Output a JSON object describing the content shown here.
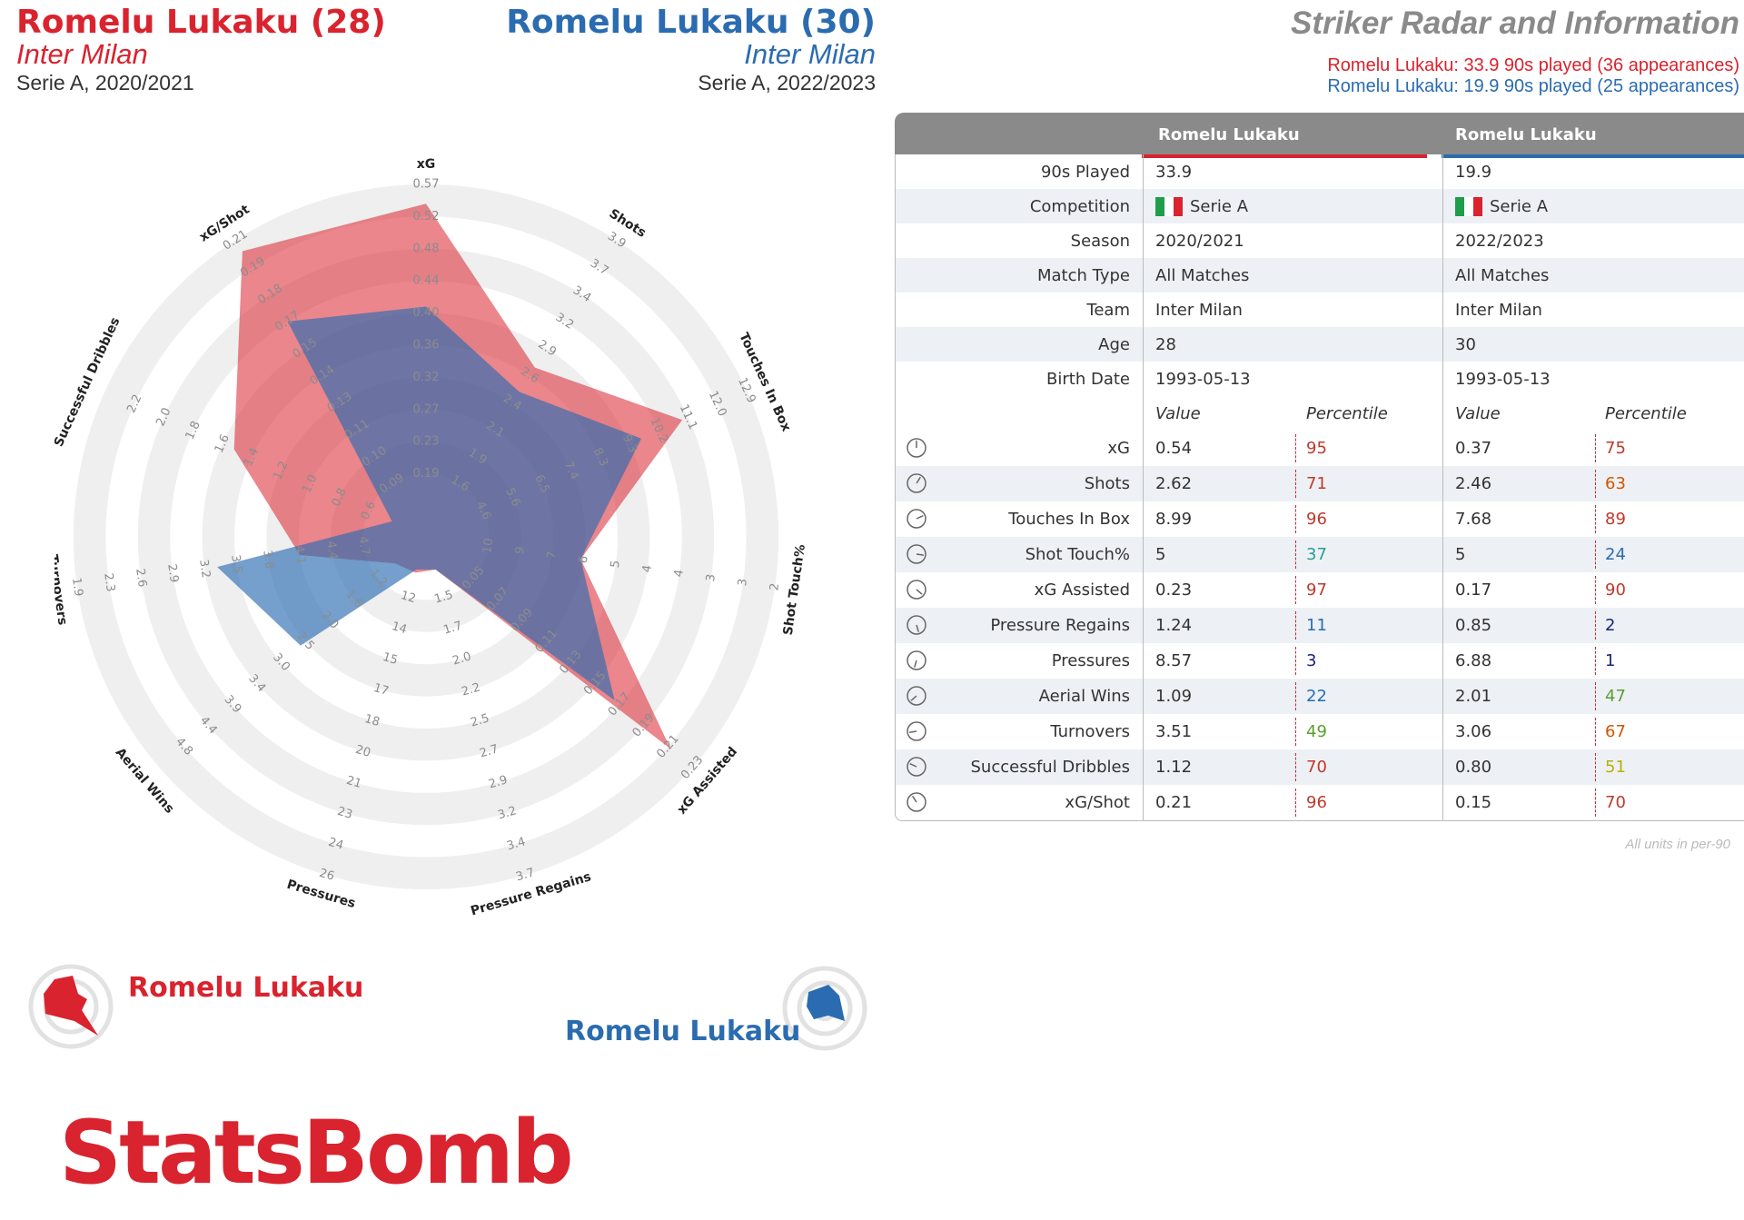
{
  "player1": {
    "name": "Romelu Lukaku (28)",
    "team": "Inter Milan",
    "competition_season": "Serie A, 2020/2021",
    "color": "#d9232e"
  },
  "player2": {
    "name": "Romelu Lukaku (30)",
    "team": "Inter Milan",
    "competition_season": "Serie A, 2022/2023",
    "color": "#2b6cb0"
  },
  "title": "Striker Radar and Information",
  "info_lines": [
    {
      "label": "Romelu Lukaku:",
      "text": "33.9 90s played (36 appearances)"
    },
    {
      "label": "Romelu Lukaku:",
      "text": "19.9 90s played (25 appearances)"
    }
  ],
  "chart_data": {
    "type": "radar",
    "metrics": [
      {
        "name": "xG",
        "ticks": [
          "0.19",
          "0.23",
          "0.27",
          "0.32",
          "0.36",
          "0.40",
          "0.44",
          "0.48",
          "0.52",
          "0.57"
        ]
      },
      {
        "name": "Shots",
        "ticks": [
          "1.6",
          "1.9",
          "2.1",
          "2.4",
          "2.6",
          "2.9",
          "3.2",
          "3.4",
          "3.7",
          "3.9"
        ]
      },
      {
        "name": "Touches In Box",
        "ticks": [
          "4.6",
          "5.6",
          "6.5",
          "7.4",
          "8.3",
          "9.3",
          "10.2",
          "11.1",
          "12.0",
          "12.9"
        ]
      },
      {
        "name": "Shot Touch%",
        "ticks": [
          "10",
          "9",
          "7",
          "6",
          "5",
          "4",
          "4",
          "3",
          "3",
          "2"
        ]
      },
      {
        "name": "xG Assisted",
        "ticks": [
          "0.05",
          "0.07",
          "0.09",
          "0.11",
          "0.13",
          "0.15",
          "0.17",
          "0.19",
          "0.21",
          "0.23"
        ]
      },
      {
        "name": "Pressure Regains",
        "ticks": [
          "1.5",
          "1.7",
          "2.0",
          "2.2",
          "2.5",
          "2.7",
          "2.9",
          "3.2",
          "3.4",
          "3.7"
        ]
      },
      {
        "name": "Pressures",
        "ticks": [
          "12",
          "14",
          "15",
          "17",
          "18",
          "20",
          "21",
          "23",
          "24",
          "26"
        ]
      },
      {
        "name": "Aerial Wins",
        "ticks": [
          "1.2",
          "1.6",
          "2.0",
          "2.5",
          "3.0",
          "3.4",
          "3.9",
          "4.4",
          "4.8"
        ]
      },
      {
        "name": "Turnovers",
        "ticks": [
          "4.7",
          "4.4",
          "4.1",
          "3.8",
          "3.5",
          "3.2",
          "2.9",
          "2.6",
          "2.3",
          "1.9"
        ]
      },
      {
        "name": "Successful Dribbles",
        "ticks": [
          "0.6",
          "0.8",
          "1.0",
          "1.2",
          "1.4",
          "1.6",
          "1.8",
          "2.0",
          "2.2"
        ]
      },
      {
        "name": "xG/Shot",
        "ticks": [
          "0.09",
          "0.10",
          "0.11",
          "0.13",
          "0.14",
          "0.15",
          "0.17",
          "0.18",
          "0.19",
          "0.21"
        ]
      }
    ],
    "series": [
      {
        "name": "Romelu Lukaku",
        "color": "#d9232e",
        "fraction": [
          0.94,
          0.53,
          0.78,
          0.39,
          0.91,
          0.01,
          0.02,
          0.03,
          0.3,
          0.56,
          0.96
        ]
      },
      {
        "name": "Romelu Lukaku",
        "color": "#2b6cb0",
        "fraction": [
          0.62,
          0.44,
          0.64,
          0.39,
          0.68,
          0.01,
          0.01,
          0.42,
          0.56,
          0.02,
          0.7
        ]
      }
    ]
  },
  "legend": {
    "red_name": "Romelu Lukaku",
    "blue_name": "Romelu Lukaku"
  },
  "logo": "StatsBomb",
  "table": {
    "col_header_1": "Romelu Lukaku",
    "col_header_2": "Romelu Lukaku",
    "info_rows": [
      {
        "label": "90s Played",
        "v1": "33.9",
        "v2": "19.9"
      },
      {
        "label": "Competition",
        "v1": "Serie A",
        "v2": "Serie A",
        "flag": true
      },
      {
        "label": "Season",
        "v1": "2020/2021",
        "v2": "2022/2023"
      },
      {
        "label": "Match Type",
        "v1": "All Matches",
        "v2": "All Matches"
      },
      {
        "label": "Team",
        "v1": "Inter Milan",
        "v2": "Inter Milan"
      },
      {
        "label": "Age",
        "v1": "28",
        "v2": "30"
      },
      {
        "label": "Birth Date",
        "v1": "1993-05-13",
        "v2": "1993-05-13"
      }
    ],
    "value_header": "Value",
    "percentile_header": "Percentile",
    "stat_rows": [
      {
        "label": "xG",
        "v1": "0.54",
        "p1": "95",
        "v2": "0.37",
        "p2": "75"
      },
      {
        "label": "Shots",
        "v1": "2.62",
        "p1": "71",
        "v2": "2.46",
        "p2": "63"
      },
      {
        "label": "Touches In Box",
        "v1": "8.99",
        "p1": "96",
        "v2": "7.68",
        "p2": "89"
      },
      {
        "label": "Shot Touch%",
        "v1": "5",
        "p1": "37",
        "v2": "5",
        "p2": "24"
      },
      {
        "label": "xG Assisted",
        "v1": "0.23",
        "p1": "97",
        "v2": "0.17",
        "p2": "90"
      },
      {
        "label": "Pressure Regains",
        "v1": "1.24",
        "p1": "11",
        "v2": "0.85",
        "p2": "2"
      },
      {
        "label": "Pressures",
        "v1": "8.57",
        "p1": "3",
        "v2": "6.88",
        "p2": "1"
      },
      {
        "label": "Aerial Wins",
        "v1": "1.09",
        "p1": "22",
        "v2": "2.01",
        "p2": "47"
      },
      {
        "label": "Turnovers",
        "v1": "3.51",
        "p1": "49",
        "v2": "3.06",
        "p2": "67"
      },
      {
        "label": "Successful Dribbles",
        "v1": "1.12",
        "p1": "70",
        "v2": "0.80",
        "p2": "51"
      },
      {
        "label": "xG/Shot",
        "v1": "0.21",
        "p1": "96",
        "v2": "0.15",
        "p2": "70"
      }
    ],
    "units_note": "All units in per-90"
  }
}
